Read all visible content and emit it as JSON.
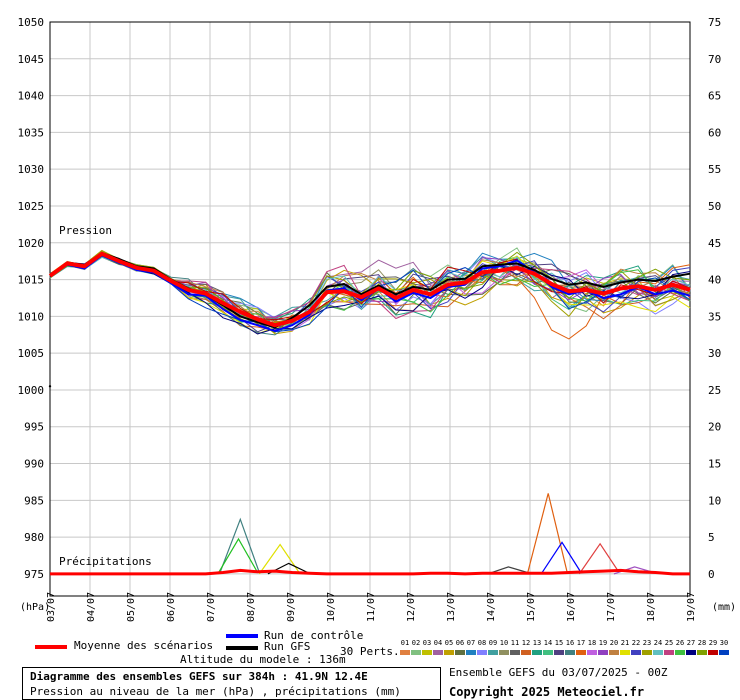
{
  "chart_data": {
    "type": "line",
    "title": "Diagramme des ensembles GEFS sur 384h : 41.9N 12.4E",
    "subtitle": "Pression au niveau de la mer (hPa) , précipitations (mm)",
    "left_axis": {
      "label": "(hPa)",
      "ticks": [
        1050,
        1045,
        1040,
        1035,
        1030,
        1025,
        1020,
        1015,
        1010,
        1005,
        1000,
        995,
        990,
        985,
        980,
        975
      ],
      "range": [
        972,
        1050
      ]
    },
    "right_axis": {
      "label": "(mm)",
      "ticks": [
        75,
        70,
        65,
        60,
        55,
        50,
        45,
        40,
        35,
        30,
        25,
        20,
        15,
        10,
        5,
        0
      ]
    },
    "x_ticks": [
      "03/07",
      "04/07",
      "05/07",
      "06/07",
      "07/07",
      "08/07",
      "09/07",
      "10/07",
      "11/07",
      "12/07",
      "13/07",
      "14/07",
      "15/07",
      "16/07",
      "17/07",
      "18/07",
      "19/07"
    ],
    "section_labels": {
      "pressure": "Pression",
      "precip": "Précipitations"
    },
    "grid": true,
    "series": [
      {
        "name": "Moyenne des scénarios",
        "color": "#ff0000",
        "values": [
          1015.5,
          1017.2,
          1016.8,
          1018.5,
          1017.5,
          1016.6,
          1016.2,
          1014.8,
          1013.6,
          1013.1,
          1011.8,
          1010.6,
          1009.6,
          1008.8,
          1009.4,
          1010.6,
          1013.3,
          1013.4,
          1012.6,
          1013.8,
          1012.5,
          1013.6,
          1013.0,
          1014.3,
          1014.6,
          1016.0,
          1016.2,
          1016.6,
          1015.8,
          1014.4,
          1013.4,
          1013.6,
          1013.1,
          1013.8,
          1014.1,
          1013.6,
          1014.3,
          1013.6
        ]
      },
      {
        "name": "Run de contrôle",
        "color": "#0000ff",
        "values": [
          1015.5,
          1017.0,
          1016.5,
          1018.3,
          1017.3,
          1016.3,
          1016.0,
          1014.5,
          1013.0,
          1012.8,
          1011.0,
          1009.5,
          1008.8,
          1008.0,
          1008.8,
          1010.2,
          1013.5,
          1013.8,
          1012.2,
          1013.8,
          1012.0,
          1013.2,
          1012.5,
          1014.0,
          1014.3,
          1016.5,
          1016.8,
          1017.6,
          1016.0,
          1014.0,
          1013.0,
          1013.5,
          1012.5,
          1013.0,
          1014.0,
          1013.0,
          1013.5,
          1012.8
        ]
      },
      {
        "name": "Run GFS",
        "color": "#000000",
        "values": [
          1015.5,
          1017.3,
          1017.0,
          1018.6,
          1017.8,
          1016.8,
          1016.5,
          1015.0,
          1013.8,
          1013.0,
          1011.5,
          1010.0,
          1009.2,
          1008.5,
          1009.8,
          1011.5,
          1014.0,
          1014.4,
          1013.0,
          1014.2,
          1013.0,
          1014.0,
          1013.6,
          1015.0,
          1015.1,
          1016.8,
          1017.0,
          1017.2,
          1016.3,
          1015.1,
          1014.3,
          1014.6,
          1014.0,
          1014.6,
          1015.0,
          1014.8,
          1015.4,
          1015.8
        ]
      }
    ],
    "precip": {
      "mean": [
        0,
        0,
        0,
        0,
        0,
        0,
        0,
        0,
        0,
        0,
        0.2,
        0.5,
        0.3,
        0.4,
        0.2,
        0.1,
        0,
        0,
        0,
        0,
        0,
        0,
        0.1,
        0.1,
        0,
        0.1,
        0.1,
        0.1,
        0.1,
        0.1,
        0.2,
        0.3,
        0.4,
        0.5,
        0.3,
        0.2,
        0,
        0
      ],
      "peaks": [
        {
          "x": 11.0,
          "value": 7.8,
          "color": "#408080"
        },
        {
          "x": 10.9,
          "value": 5.0,
          "color": "#20c020"
        },
        {
          "x": 13.3,
          "value": 4.2,
          "color": "#e0e000"
        },
        {
          "x": 13.8,
          "value": 1.5,
          "color": "#000000"
        },
        {
          "x": 28.8,
          "value": 11.5,
          "color": "#e06010"
        },
        {
          "x": 29.6,
          "value": 4.5,
          "color": "#0000ff"
        },
        {
          "x": 31.8,
          "value": 4.3,
          "color": "#e04040"
        },
        {
          "x": 26.5,
          "value": 1.0,
          "color": "#404040"
        },
        {
          "x": 33.8,
          "value": 1.0,
          "color": "#a050c0"
        }
      ]
    }
  },
  "legend": {
    "mean_label": "Moyenne des scénarios",
    "control_label": "Run de contrôle",
    "gfs_label": "Run GFS",
    "altitude": "Altitude du modele : 136m",
    "perts_label": "30 Perts.",
    "pert_numbers": [
      "01",
      "02",
      "03",
      "04",
      "05",
      "06",
      "07",
      "08",
      "09",
      "10",
      "11",
      "12",
      "13",
      "14",
      "15",
      "16",
      "17",
      "18",
      "19",
      "20",
      "21",
      "22",
      "23",
      "24",
      "25",
      "26",
      "27",
      "28",
      "29",
      "30"
    ],
    "pert_colors": [
      "#e08040",
      "#80c080",
      "#c0c000",
      "#a060a0",
      "#c0a000",
      "#607040",
      "#2080c0",
      "#8080ff",
      "#40a0a0",
      "#909060",
      "#606060",
      "#d06020",
      "#20a080",
      "#40c080",
      "#504080",
      "#408080",
      "#e06010",
      "#c060e0",
      "#9040c0",
      "#c08040",
      "#e0e000",
      "#4040c0",
      "#a0a000",
      "#60c0c0",
      "#c04080",
      "#40c040",
      "#000080",
      "#80a000",
      "#c00000",
      "#0040c0"
    ]
  },
  "info_box": {
    "title": "Diagramme des ensembles GEFS sur 384h : 41.9N 12.4E",
    "subtitle": "Pression au niveau de la mer (hPa) , précipitations (mm)"
  },
  "footer": {
    "run": "Ensemble GEFS du 03/07/2025 - 00Z",
    "copyright": "Copyright 2025 Meteociel.fr"
  }
}
